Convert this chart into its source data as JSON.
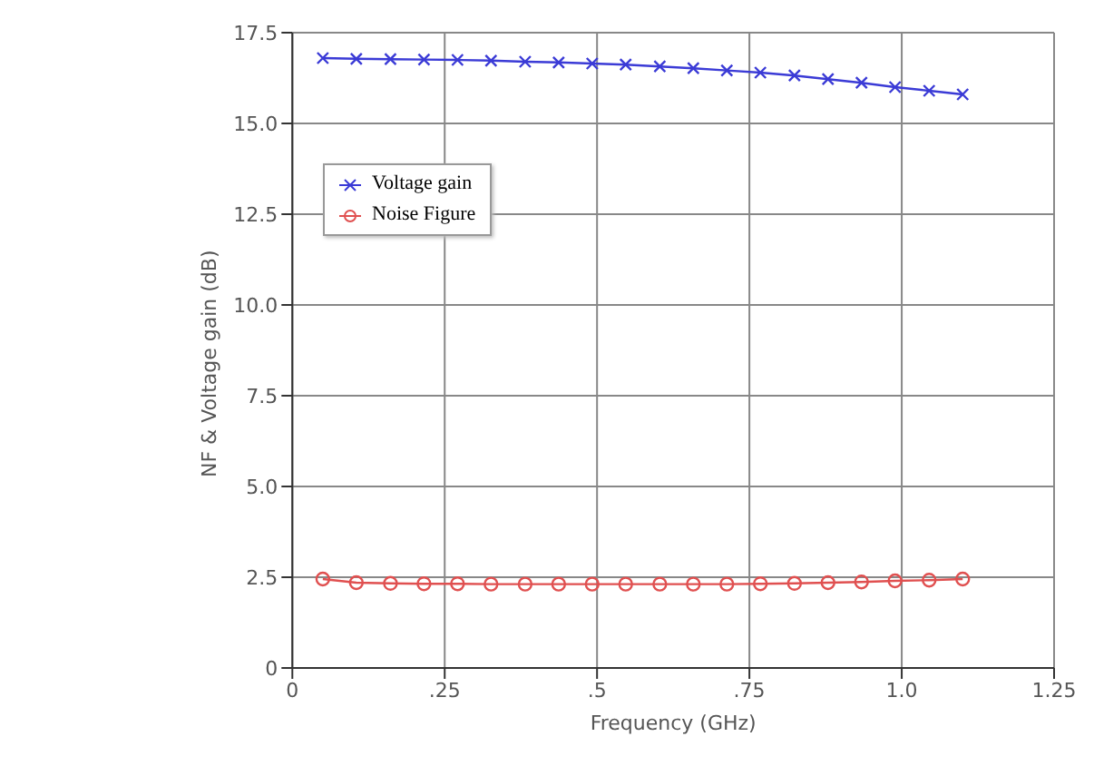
{
  "chart_data": {
    "type": "line",
    "xlabel": "Frequency (GHz)",
    "ylabel": "NF & Voltage gain (dB)",
    "x": [
      0.05,
      0.105,
      0.161,
      0.216,
      0.271,
      0.326,
      0.382,
      0.437,
      0.492,
      0.547,
      0.603,
      0.658,
      0.713,
      0.768,
      0.824,
      0.879,
      0.934,
      0.989,
      1.045,
      1.1
    ],
    "series": [
      {
        "name": "Voltage gain",
        "color": "#3b3bd6",
        "marker": "cross",
        "values": [
          16.8,
          16.78,
          16.77,
          16.76,
          16.75,
          16.73,
          16.7,
          16.68,
          16.65,
          16.62,
          16.57,
          16.52,
          16.46,
          16.4,
          16.32,
          16.22,
          16.12,
          16.0,
          15.9,
          15.8
        ]
      },
      {
        "name": "Noise Figure",
        "color": "#e05050",
        "marker": "circle",
        "values": [
          2.45,
          2.35,
          2.33,
          2.32,
          2.32,
          2.31,
          2.31,
          2.31,
          2.31,
          2.31,
          2.31,
          2.31,
          2.31,
          2.32,
          2.33,
          2.35,
          2.37,
          2.4,
          2.42,
          2.45
        ]
      }
    ],
    "xlim": [
      0,
      1.25
    ],
    "xticks": [
      0,
      {
        "value": 0.25,
        "label": ".25"
      },
      {
        "value": 0.5,
        "label": ".5"
      },
      {
        "value": 0.75,
        "label": ".75"
      },
      {
        "value": 1,
        "label": "1.0"
      },
      1.25
    ],
    "ylim": [
      0,
      17.5
    ],
    "yticks": [
      0,
      2.5,
      {
        "value": 5,
        "label": "5.0"
      },
      7.5,
      {
        "value": 10,
        "label": "10.0"
      },
      12.5,
      {
        "value": 15,
        "label": "15.0"
      },
      17.5
    ],
    "grid": true,
    "legend": "top left",
    "line_style": "solid"
  }
}
